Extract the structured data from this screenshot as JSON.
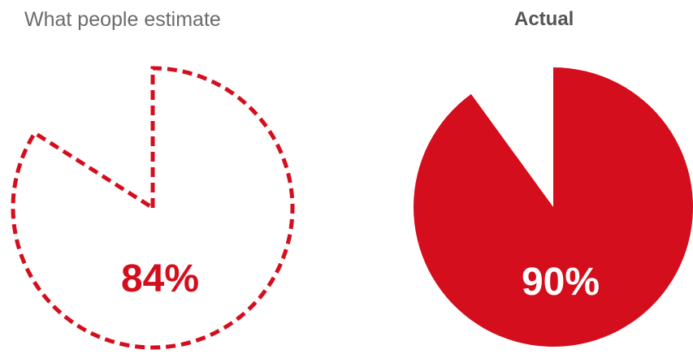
{
  "chart_data": [
    {
      "type": "pie",
      "title": "What people estimate",
      "value": 84,
      "label": "84%",
      "style": "dashed-outline",
      "color": "#d40e1c"
    },
    {
      "type": "pie",
      "title": "Actual",
      "value": 90,
      "label": "90%",
      "style": "filled",
      "color": "#d40e1c"
    }
  ],
  "colors": {
    "accent": "#d40e1c",
    "estimate_title": "#6b6b6b",
    "actual_title": "#555555",
    "label_on_fill": "#ffffff"
  }
}
